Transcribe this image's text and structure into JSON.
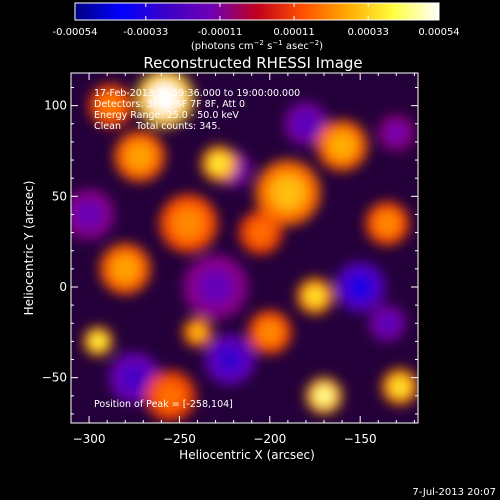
{
  "colorbar": {
    "ticks": [
      "-0.00054",
      "-0.00033",
      "-0.00011",
      "0.00011",
      "0.00033",
      "0.00054"
    ],
    "tick_values": [
      -0.00054,
      -0.00033,
      -0.00011,
      0.00011,
      0.00033,
      0.00054
    ],
    "range": [
      -0.00054,
      0.00054
    ],
    "units_parts": [
      "(photons cm",
      "−2",
      " s",
      "−1",
      " asec",
      "−2",
      ")"
    ],
    "stops": [
      "#000080",
      "#0000ff",
      "#3a00c8",
      "#7000b4",
      "#c0001e",
      "#ff5000",
      "#ffaa00",
      "#ffff40",
      "#ffffff"
    ]
  },
  "chart_data": {
    "type": "heatmap",
    "title": "Reconstructed RHESSI Image",
    "xlabel": "Heliocentric X (arcsec)",
    "ylabel": "Heliocentric Y (arcsec)",
    "xlim": [
      -310,
      -118
    ],
    "ylim": [
      -75,
      118
    ],
    "xticks": [
      -300,
      -250,
      -200,
      -150
    ],
    "yticks": [
      -50,
      0,
      50,
      100
    ],
    "annotations": {
      "time_line": "17-Feb-2013 18:59:36.000 to 19:00:00.000",
      "detectors_line": "Detectors: 3F 4F 6F 7F 8F, Att 0",
      "energy_line": "Energy Range: 25.0 - 50.0 keV",
      "clean_line": "Clean     Total counts: 345.",
      "peak_line": "Position of Peak = [-258,104]"
    },
    "peak": [
      -258,
      104
    ],
    "peak_value": 0.00054,
    "blobs": [
      {
        "x": -258,
        "y": 104,
        "r": 16,
        "v": 0.00054
      },
      {
        "x": -228,
        "y": 68,
        "r": 10,
        "v": 0.00038
      },
      {
        "x": -190,
        "y": 52,
        "r": 18,
        "v": 0.0003
      },
      {
        "x": -160,
        "y": 78,
        "r": 14,
        "v": 0.00028
      },
      {
        "x": -272,
        "y": 72,
        "r": 14,
        "v": 0.00026
      },
      {
        "x": -288,
        "y": 100,
        "r": 12,
        "v": 0.0002
      },
      {
        "x": -245,
        "y": 35,
        "r": 16,
        "v": 0.00022
      },
      {
        "x": -205,
        "y": 30,
        "r": 12,
        "v": 0.00018
      },
      {
        "x": -280,
        "y": 10,
        "r": 14,
        "v": 0.00026
      },
      {
        "x": -175,
        "y": -5,
        "r": 10,
        "v": 0.00036
      },
      {
        "x": -135,
        "y": 35,
        "r": 12,
        "v": 0.00022
      },
      {
        "x": -295,
        "y": -30,
        "r": 8,
        "v": 0.0004
      },
      {
        "x": -240,
        "y": -25,
        "r": 8,
        "v": 0.0003
      },
      {
        "x": -200,
        "y": -25,
        "r": 12,
        "v": 0.00022
      },
      {
        "x": -170,
        "y": -60,
        "r": 10,
        "v": 0.00046
      },
      {
        "x": -128,
        "y": -55,
        "r": 10,
        "v": 0.00036
      },
      {
        "x": -255,
        "y": -60,
        "r": 14,
        "v": 0.00018
      },
      {
        "x": -150,
        "y": 0,
        "r": 14,
        "v": -0.00034
      },
      {
        "x": -222,
        "y": -40,
        "r": 14,
        "v": -0.00028
      },
      {
        "x": -220,
        "y": 65,
        "r": 10,
        "v": -0.00018
      },
      {
        "x": -275,
        "y": -50,
        "r": 14,
        "v": -0.00024
      },
      {
        "x": -300,
        "y": 40,
        "r": 14,
        "v": -0.00016
      },
      {
        "x": -180,
        "y": 90,
        "r": 12,
        "v": -0.0002
      },
      {
        "x": -230,
        "y": 0,
        "r": 18,
        "v": -0.00016
      },
      {
        "x": -135,
        "y": -20,
        "r": 10,
        "v": -0.0002
      },
      {
        "x": -130,
        "y": 85,
        "r": 10,
        "v": -0.00014
      }
    ]
  },
  "footer": {
    "timestamp": "7-Jul-2013 20:07"
  }
}
